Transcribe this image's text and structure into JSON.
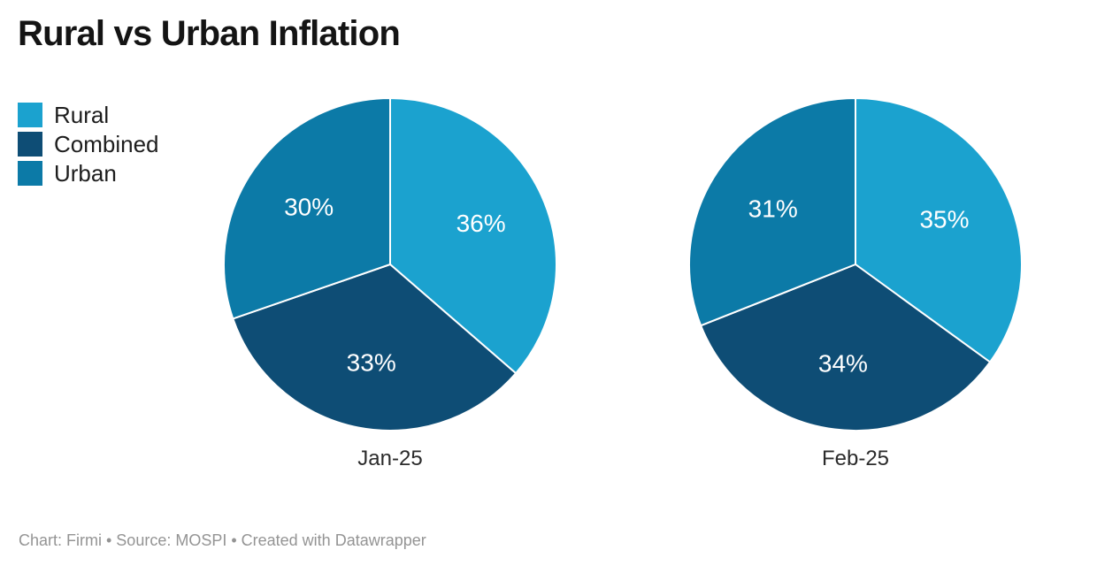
{
  "header": {
    "title": "Rural vs Urban Inflation"
  },
  "legend": {
    "items": [
      {
        "label": "Rural",
        "color": "#1ba2cf"
      },
      {
        "label": "Combined",
        "color": "#0e4d75"
      },
      {
        "label": "Urban",
        "color": "#0c7aa7"
      }
    ]
  },
  "colors": {
    "rural": "#1ba2cf",
    "combined": "#0e4d75",
    "urban": "#0c7aa7",
    "slice_divider": "#ffffff",
    "title_text": "#141414",
    "caption_text": "#2b2b2b",
    "footer_text": "#949494"
  },
  "footer": {
    "text": "Chart: Firmi • Source: MOSPI • Created with Datawrapper"
  },
  "chart_data": [
    {
      "type": "pie",
      "title": "Jan-25",
      "start_angle_deg": 0,
      "direction": "clockwise",
      "legend_position": "top-left",
      "series": [
        {
          "name": "Rural",
          "value": 36,
          "label": "36%",
          "color": "#1ba2cf"
        },
        {
          "name": "Combined",
          "value": 33,
          "label": "33%",
          "color": "#0e4d75"
        },
        {
          "name": "Urban",
          "value": 30,
          "label": "30%",
          "color": "#0c7aa7"
        }
      ]
    },
    {
      "type": "pie",
      "title": "Feb-25",
      "start_angle_deg": 0,
      "direction": "clockwise",
      "legend_position": "top-left",
      "series": [
        {
          "name": "Rural",
          "value": 35,
          "label": "35%",
          "color": "#1ba2cf"
        },
        {
          "name": "Combined",
          "value": 34,
          "label": "34%",
          "color": "#0e4d75"
        },
        {
          "name": "Urban",
          "value": 31,
          "label": "31%",
          "color": "#0c7aa7"
        }
      ]
    }
  ]
}
